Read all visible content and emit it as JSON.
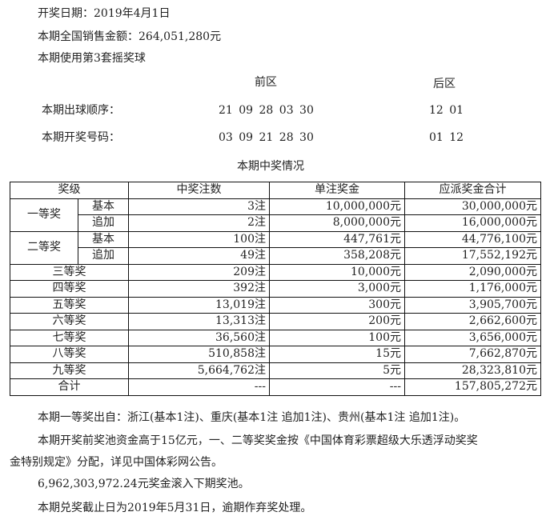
{
  "header": {
    "draw_date": "开奖日期：2019年4月1日",
    "sales": "本期全国销售金额：264,051,280元",
    "ball_set": "本期使用第3套摇奖球"
  },
  "numbers": {
    "front_label": "前区",
    "back_label": "后区",
    "order_label": "本期出球顺序：",
    "order_front": "21 09 28 03 30",
    "order_back": "12 01",
    "result_label": "本期开奖号码：",
    "result_front": "03 09 21 28 30",
    "result_back": "01 12"
  },
  "table": {
    "title": "本期中奖情况",
    "headers": [
      "奖级",
      "中奖注数",
      "单注奖金",
      "应派奖金合计"
    ],
    "rows": [
      {
        "tier": "一等奖",
        "sub": "基本",
        "count": "3注",
        "prize": "10,000,000元",
        "total": "30,000,000元"
      },
      {
        "tier": "一等奖",
        "sub": "追加",
        "count": "2注",
        "prize": "8,000,000元",
        "total": "16,000,000元"
      },
      {
        "tier": "二等奖",
        "sub": "基本",
        "count": "100注",
        "prize": "447,761元",
        "total": "44,776,100元"
      },
      {
        "tier": "二等奖",
        "sub": "追加",
        "count": "49注",
        "prize": "358,208元",
        "total": "17,552,192元"
      },
      {
        "tier": "三等奖",
        "count": "209注",
        "prize": "10,000元",
        "total": "2,090,000元"
      },
      {
        "tier": "四等奖",
        "count": "392注",
        "prize": "3,000元",
        "total": "1,176,000元"
      },
      {
        "tier": "五等奖",
        "count": "13,019注",
        "prize": "300元",
        "total": "3,905,700元"
      },
      {
        "tier": "六等奖",
        "count": "13,313注",
        "prize": "200元",
        "total": "2,662,600元"
      },
      {
        "tier": "七等奖",
        "count": "36,560注",
        "prize": "100元",
        "total": "3,656,000元"
      },
      {
        "tier": "八等奖",
        "count": "510,858注",
        "prize": "15元",
        "total": "7,662,870元"
      },
      {
        "tier": "九等奖",
        "count": "5,664,762注",
        "prize": "5元",
        "total": "28,323,810元"
      },
      {
        "tier": "合计",
        "count": "---",
        "prize": "---",
        "total": "157,805,272元"
      }
    ]
  },
  "notes": {
    "first_prize_origin": "本期一等奖出自：浙江(基本1注)、重庆(基本1注 追加1注)、贵州(基本1注 追加1注)。",
    "pool_line1": "本期开奖前奖池资金高于15亿元，一、二等奖奖金按《中国体育彩票超级大乐透浮动奖奖",
    "pool_line2": "金特别规定》分配，详见中国体彩网公告。",
    "rollover": "6,962,303,972.24元奖金滚入下期奖池。",
    "deadline": "本期兑奖截止日为2019年5月31日，逾期作弃奖处理。"
  }
}
